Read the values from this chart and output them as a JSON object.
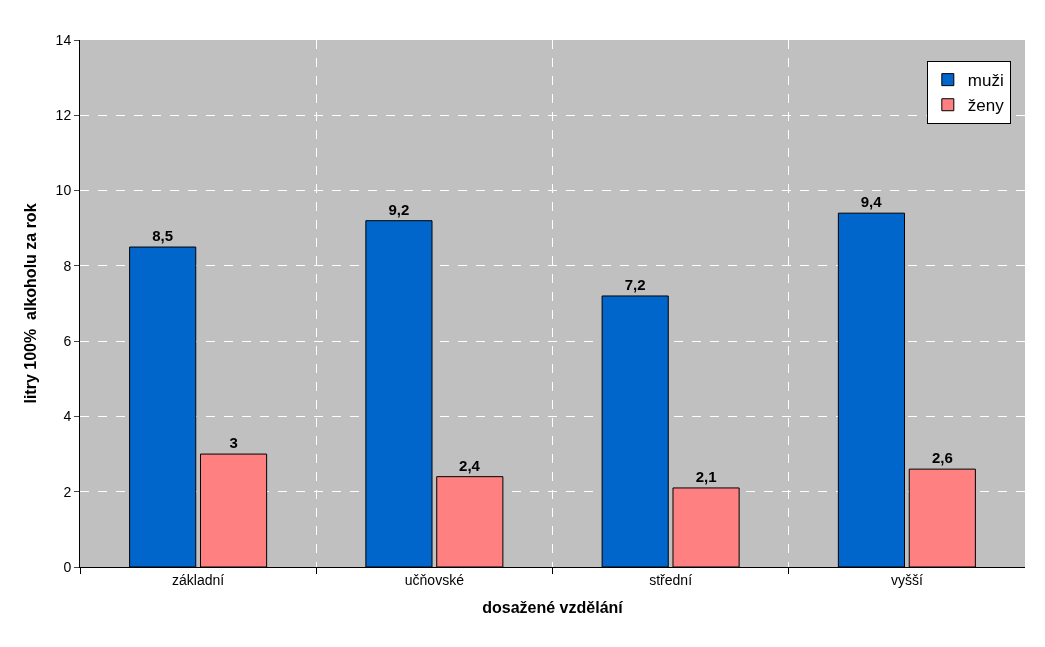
{
  "chart_data": {
    "type": "bar",
    "xlabel": "dosažené vzdělání",
    "ylabel": "litry 100%  alkoholu za rok",
    "categories": [
      "základní",
      "učňovské",
      "střední",
      "vyšší"
    ],
    "series": [
      {
        "name": "muži",
        "color": "#0066cc",
        "values": [
          8.5,
          9.2,
          7.2,
          9.4
        ],
        "value_labels": [
          "8,5",
          "9,2",
          "7,2",
          "9,4"
        ]
      },
      {
        "name": "ženy",
        "color": "#ff8080",
        "values": [
          3,
          2.4,
          2.1,
          2.6
        ],
        "value_labels": [
          "3",
          "2,4",
          "2,1",
          "2,6"
        ]
      }
    ],
    "ylim": [
      0,
      14
    ],
    "yticks": [
      0,
      2,
      4,
      6,
      8,
      10,
      12,
      14
    ],
    "grid": true,
    "legend": "top right"
  }
}
